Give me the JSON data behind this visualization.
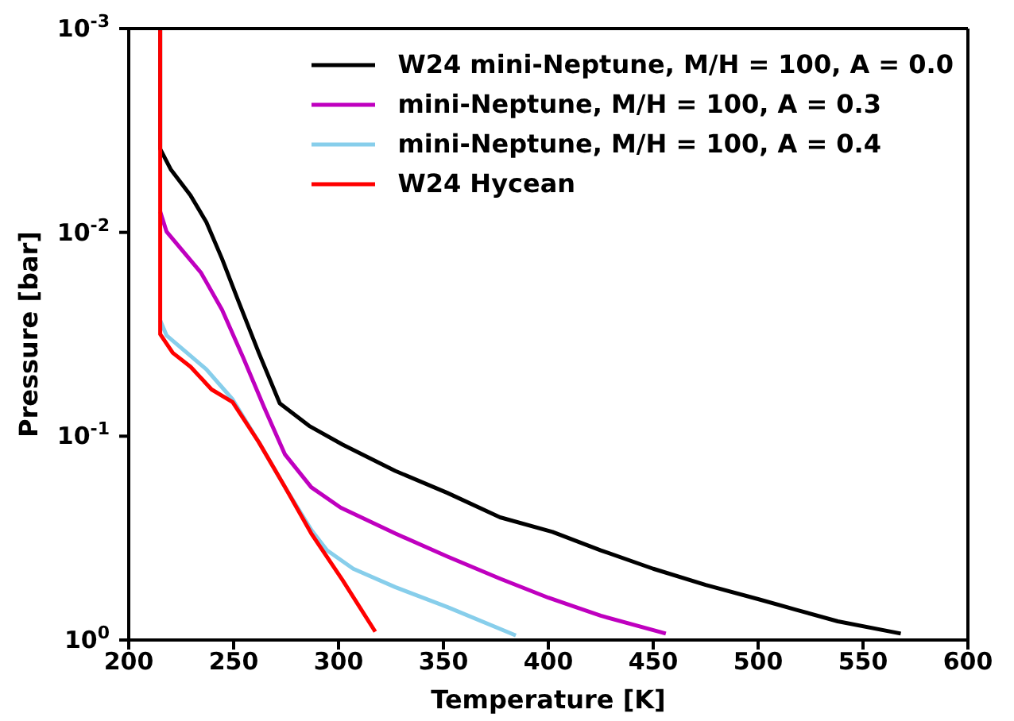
{
  "chart_data": {
    "type": "line",
    "xlabel": "Temperature [K]",
    "ylabel": "Pressure [bar]",
    "xlim": [
      200,
      600
    ],
    "xticks": [
      200,
      250,
      300,
      350,
      400,
      450,
      500,
      550,
      600
    ],
    "ylim": [
      1,
      0.001
    ],
    "log": "y",
    "yticks": [
      {
        "value": 0.001,
        "label": "10$^{-3}$"
      },
      {
        "value": 0.01,
        "label": "10$^{-2}$"
      },
      {
        "value": 0.1,
        "label": "10$^{-1}$"
      },
      {
        "value": 1,
        "label": "10$^{0}$"
      }
    ],
    "legend": "top right",
    "marker": "none",
    "line_style": "solid",
    "series": [
      {
        "name": "W24 mini-Neptune, M/H = 100, A = 0.0",
        "color": "#000000",
        "x": [
          215,
          215,
          220,
          229.5,
          237,
          244.5,
          252,
          262,
          272,
          286,
          302,
          327,
          352,
          377,
          402,
          425,
          450,
          475,
          500,
          518,
          538,
          568
        ],
        "values": [
          0.001,
          0.0039,
          0.0049,
          0.0066,
          0.0089,
          0.0135,
          0.0214,
          0.039,
          0.069,
          0.089,
          0.11,
          0.148,
          0.19,
          0.25,
          0.295,
          0.363,
          0.447,
          0.537,
          0.63,
          0.71,
          0.81,
          0.93
        ]
      },
      {
        "name": "mini-Neptune, M/H = 100, A = 0.3",
        "color": "#bf00bf",
        "x": [
          215,
          218,
          234.5,
          244.5,
          254.5,
          264.5,
          274.5,
          287,
          301,
          327,
          352,
          377,
          400,
          425,
          456
        ],
        "values": [
          0.0079,
          0.0099,
          0.0158,
          0.024,
          0.041,
          0.072,
          0.123,
          0.178,
          0.224,
          0.3,
          0.39,
          0.5,
          0.62,
          0.76,
          0.93
        ]
      },
      {
        "name": "mini-Neptune, M/H = 100, A = 0.4",
        "color": "#87ceeb",
        "x": [
          215,
          218,
          237,
          249.5,
          262,
          274.5,
          287,
          294.5,
          307,
          327,
          352,
          384.5
        ],
        "values": [
          0.027,
          0.032,
          0.047,
          0.066,
          0.107,
          0.178,
          0.288,
          0.363,
          0.447,
          0.55,
          0.69,
          0.95
        ]
      },
      {
        "name": "W24 Hycean",
        "color": "#ff0000",
        "x": [
          215,
          215,
          221,
          229.5,
          239.5,
          249.5,
          262,
          274.5,
          287,
          302,
          317.5
        ],
        "values": [
          0.001,
          0.0316,
          0.039,
          0.0457,
          0.059,
          0.068,
          0.107,
          0.178,
          0.3,
          0.51,
          0.91
        ]
      }
    ]
  }
}
